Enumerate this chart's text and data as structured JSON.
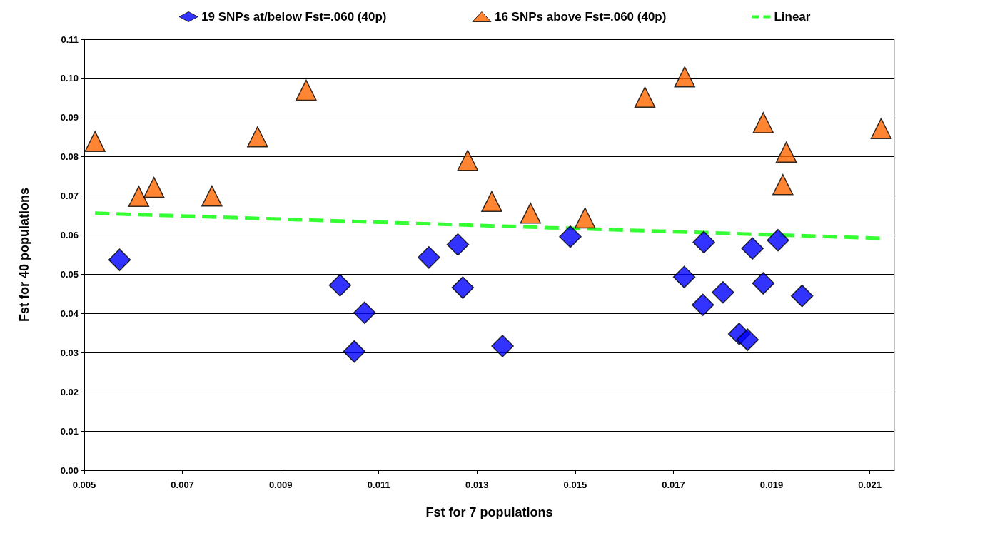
{
  "chart_data": {
    "type": "scatter",
    "xlabel": "Fst for 7 populations",
    "ylabel": "Fst for 40 populations",
    "xlim": [
      0.005,
      0.0215
    ],
    "xticks": [
      0.005,
      0.007,
      0.009,
      0.011,
      0.013,
      0.015,
      0.017,
      0.019,
      0.021
    ],
    "ylim": [
      0,
      0.11
    ],
    "yticks": [
      {
        "value": 0,
        "label": "0.00"
      },
      {
        "value": 0.01,
        "label": "0.01"
      },
      {
        "value": 0.02,
        "label": "0.02"
      },
      {
        "value": 0.03,
        "label": "0.03"
      },
      {
        "value": 0.04,
        "label": "0.04"
      },
      {
        "value": 0.05,
        "label": "0.05"
      },
      {
        "value": 0.06,
        "label": "0.06"
      },
      {
        "value": 0.07,
        "label": "0.07"
      },
      {
        "value": 0.08,
        "label": "0.08"
      },
      {
        "value": 0.09,
        "label": "0.09"
      },
      {
        "value": 0.1,
        "label": "0.10"
      },
      {
        "value": 0.11,
        "label": "0.11"
      }
    ],
    "grid": "y",
    "legend": "top",
    "series": [
      {
        "name": "19 SNPs at/below Fst=.060 (40p)",
        "color": "#0000ff",
        "marker": "diamond",
        "x": [
          0.00572,
          0.01021,
          0.0105,
          0.01071,
          0.01202,
          0.01261,
          0.01271,
          0.01352,
          0.0149,
          0.01722,
          0.01762,
          0.0176,
          0.01801,
          0.01834,
          0.01851,
          0.01861,
          0.01883,
          0.01913,
          0.01962
        ],
        "values": [
          0.0537,
          0.0472,
          0.0303,
          0.0402,
          0.0543,
          0.0576,
          0.0466,
          0.0317,
          0.0596,
          0.0493,
          0.0582,
          0.0422,
          0.0454,
          0.0348,
          0.0333,
          0.0566,
          0.0477,
          0.0587,
          0.0445
        ]
      },
      {
        "name": "16 SNPs above Fst=.060 (40p)",
        "color": "#ff6600",
        "marker": "triangle",
        "x": [
          0.00522,
          0.00611,
          0.00642,
          0.0076,
          0.00853,
          0.00952,
          0.01281,
          0.0133,
          0.01409,
          0.0152,
          0.01642,
          0.01723,
          0.01883,
          0.0193,
          0.01923,
          0.02123
        ],
        "values": [
          0.0839,
          0.0699,
          0.0722,
          0.07,
          0.0851,
          0.097,
          0.0791,
          0.0686,
          0.0656,
          0.0644,
          0.0952,
          0.1004,
          0.0887,
          0.0812,
          0.0729,
          0.0872
        ]
      },
      {
        "name": "Linear",
        "type": "line",
        "color": "#33ff33",
        "line_style": "dashed",
        "marker": "none",
        "x": [
          0.00522,
          0.02123
        ],
        "values": [
          0.0656,
          0.0592
        ]
      }
    ]
  }
}
